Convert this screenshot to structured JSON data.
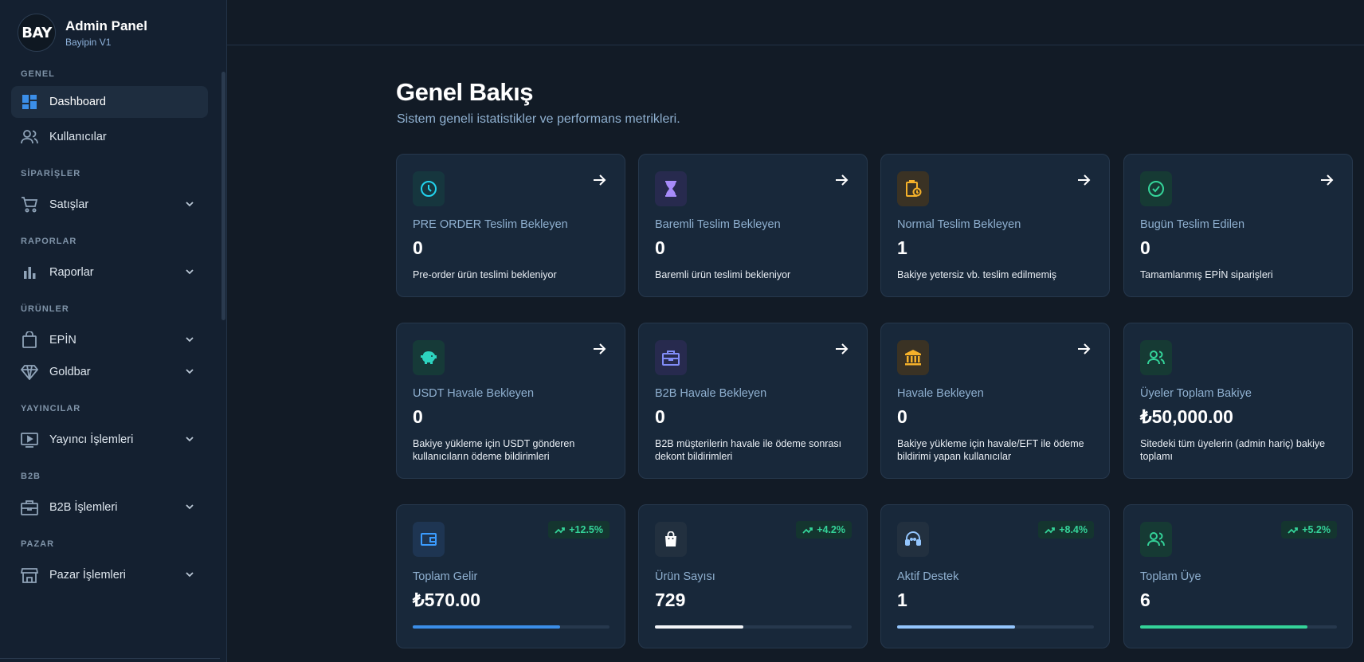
{
  "brand": {
    "logo_text": "BAY",
    "title": "Admin Panel",
    "subtitle": "Bayipin V1"
  },
  "sidebar": {
    "sections": {
      "genel": "GENEL",
      "siparisler": "SİPARİŞLER",
      "raporlar": "RAPORLAR",
      "urunler": "ÜRÜNLER",
      "yayincilar": "YAYINCILAR",
      "b2b": "B2B",
      "pazar": "PAZAR"
    },
    "items": {
      "dashboard": "Dashboard",
      "kullanicilar": "Kullanıcılar",
      "satislar": "Satışlar",
      "raporlar": "Raporlar",
      "epin": "EPİN",
      "goldbar": "Goldbar",
      "yayinci": "Yayıncı İşlemleri",
      "b2b": "B2B İşlemleri",
      "pazar": "Pazar İşlemleri"
    }
  },
  "header": {
    "title": "Genel Bakış",
    "subtitle": "Sistem geneli istatistikler ve performans metrikleri."
  },
  "cards_row1": [
    {
      "label": "PRE ORDER Teslim Bekleyen",
      "value": "0",
      "desc": "Pre-order ürün teslimi bekleniyor",
      "icon": "clock-icon",
      "color": "#22d3ee"
    },
    {
      "label": "Baremli Teslim Bekleyen",
      "value": "0",
      "desc": "Baremli ürün teslimi bekleniyor",
      "icon": "hourglass-icon",
      "color": "#a78bfa"
    },
    {
      "label": "Normal Teslim Bekleyen",
      "value": "1",
      "desc": "Bakiye yetersiz vb. teslim edilmemiş",
      "icon": "clipboard-clock-icon",
      "color": "#f5b12a"
    },
    {
      "label": "Bugün Teslim Edilen",
      "value": "0",
      "desc": "Tamamlanmış EPİN siparişleri",
      "icon": "check-circle-icon",
      "color": "#34d399"
    }
  ],
  "cards_row2": [
    {
      "label": "USDT Havale Bekleyen",
      "value": "0",
      "desc": "Bakiye yükleme için USDT gönderen kullanıcıların ödeme bildirimleri",
      "icon": "piggy-bank-icon",
      "color": "#2dd4bf"
    },
    {
      "label": "B2B Havale Bekleyen",
      "value": "0",
      "desc": "B2B müşterilerin havale ile ödeme sonrası dekont bildirimleri",
      "icon": "briefcase-icon",
      "color": "#818cf8"
    },
    {
      "label": "Havale Bekleyen",
      "value": "0",
      "desc": "Bakiye yükleme için havale/EFT ile ödeme bildirimi yapan kullanıcılar",
      "icon": "bank-icon",
      "color": "#f5b12a"
    },
    {
      "label": "Üyeler Toplam Bakiye",
      "value": "₺50,000.00",
      "desc": "Sitedeki tüm üyelerin (admin hariç) bakiye toplamı",
      "icon": "users-icon",
      "color": "#34d399"
    }
  ],
  "cards_row3": [
    {
      "label": "Toplam Gelir",
      "value": "₺570.00",
      "badge": "+12.5%",
      "progress": 0.75,
      "icon": "wallet-icon",
      "color": "#3b9cff",
      "bar_color": "#3b8ee8"
    },
    {
      "label": "Ürün Sayısı",
      "value": "729",
      "badge": "+4.2%",
      "progress": 0.45,
      "icon": "shopping-bag-icon",
      "color": "#ffffff",
      "bar_color": "#f3f5f8"
    },
    {
      "label": "Aktif Destek",
      "value": "1",
      "badge": "+8.4%",
      "progress": 0.6,
      "icon": "headset-icon",
      "color": "#93c5fd",
      "bar_color": "#93c5fd"
    },
    {
      "label": "Toplam Üye",
      "value": "6",
      "badge": "+5.2%",
      "progress": 0.85,
      "icon": "users-icon",
      "color": "#34d399",
      "bar_color": "#34d399"
    }
  ]
}
